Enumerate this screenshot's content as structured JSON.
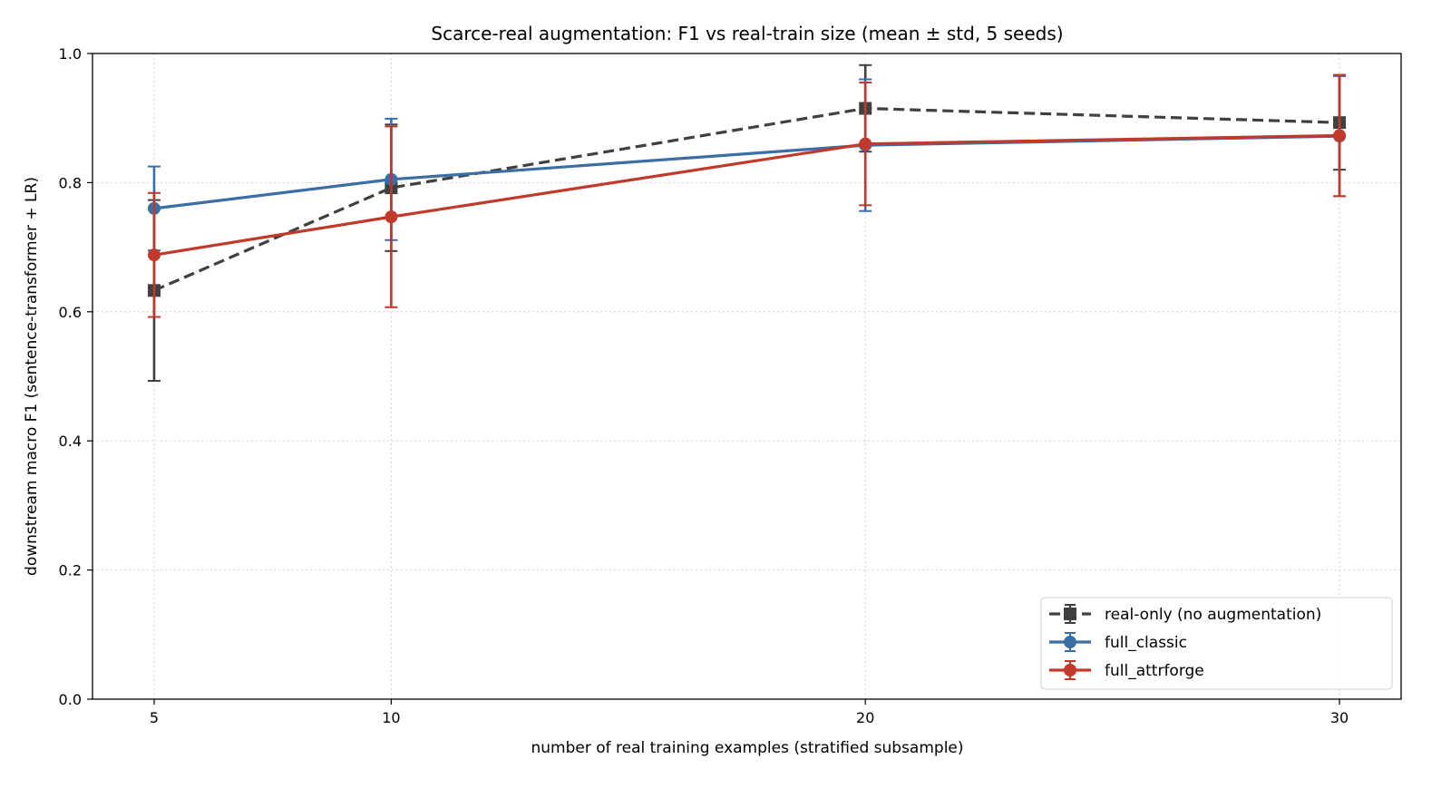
{
  "chart_data": {
    "type": "line",
    "title": "Scarce-real augmentation: F1 vs real-train size (mean ± std, 5 seeds)",
    "xlabel": "number of real training examples (stratified subsample)",
    "ylabel": "downstream macro F1 (sentence-transformer + LR)",
    "x": [
      5,
      10,
      20,
      30
    ],
    "x_ticks": [
      5,
      10,
      20,
      30
    ],
    "xlim": [
      3.7,
      31.3
    ],
    "ylim": [
      0.0,
      1.0
    ],
    "y_ticks": [
      0.0,
      0.2,
      0.4,
      0.6,
      0.8,
      1.0
    ],
    "grid": true,
    "legend_position": "lower-right",
    "series": [
      {
        "name": "real-only (no augmentation)",
        "color": "#404040",
        "marker": "square",
        "linestyle": "dashed",
        "values": [
          0.633,
          0.792,
          0.915,
          0.893
        ],
        "std": [
          0.14,
          0.098,
          0.067,
          0.073
        ]
      },
      {
        "name": "full_classic",
        "color": "#3a6ea5",
        "marker": "circle",
        "linestyle": "solid",
        "values": [
          0.76,
          0.805,
          0.858,
          0.872
        ],
        "std": [
          0.065,
          0.094,
          0.102,
          0.093
        ]
      },
      {
        "name": "full_attrforge",
        "color": "#c0392b",
        "marker": "circle",
        "linestyle": "solid",
        "values": [
          0.688,
          0.747,
          0.86,
          0.873
        ],
        "std": [
          0.096,
          0.14,
          0.095,
          0.094
        ]
      }
    ]
  }
}
